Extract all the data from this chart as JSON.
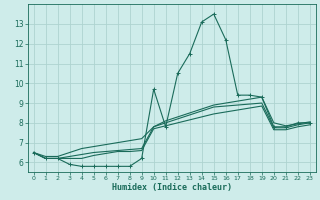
{
  "xlabel": "Humidex (Indice chaleur)",
  "x_values": [
    0,
    1,
    2,
    3,
    4,
    5,
    6,
    7,
    8,
    9,
    10,
    11,
    12,
    13,
    14,
    15,
    16,
    17,
    18,
    19,
    20,
    21,
    22,
    23
  ],
  "line_main_y": [
    6.5,
    6.2,
    6.2,
    5.9,
    5.8,
    5.8,
    5.8,
    5.8,
    5.8,
    6.2,
    9.7,
    7.8,
    10.5,
    11.5,
    13.1,
    13.5,
    12.2,
    9.4,
    9.4,
    9.3,
    7.8,
    7.8,
    8.0,
    8.0
  ],
  "line_upper_y": [
    6.5,
    6.3,
    6.3,
    6.5,
    6.7,
    6.8,
    6.9,
    7.0,
    7.1,
    7.2,
    7.8,
    8.1,
    8.3,
    8.5,
    8.7,
    8.9,
    9.0,
    9.1,
    9.2,
    9.3,
    8.0,
    7.85,
    7.95,
    8.05
  ],
  "line_mid_y": [
    6.5,
    6.2,
    6.2,
    6.3,
    6.4,
    6.5,
    6.55,
    6.6,
    6.65,
    6.7,
    7.8,
    8.0,
    8.2,
    8.4,
    8.6,
    8.8,
    8.85,
    8.9,
    8.95,
    9.0,
    7.75,
    7.75,
    7.9,
    8.0
  ],
  "line_lower_y": [
    6.5,
    6.2,
    6.2,
    6.2,
    6.2,
    6.35,
    6.45,
    6.55,
    6.55,
    6.6,
    7.7,
    7.85,
    8.0,
    8.15,
    8.3,
    8.45,
    8.55,
    8.65,
    8.75,
    8.85,
    7.65,
    7.65,
    7.8,
    7.9
  ],
  "bg_color": "#ceecea",
  "grid_color": "#aed4d0",
  "line_color": "#1a6b5a",
  "ylim": [
    5.5,
    14.0
  ],
  "xlim": [
    -0.5,
    23.5
  ],
  "yticks": [
    6,
    7,
    8,
    9,
    10,
    11,
    12,
    13
  ],
  "xticks": [
    0,
    1,
    2,
    3,
    4,
    5,
    6,
    7,
    8,
    9,
    10,
    11,
    12,
    13,
    14,
    15,
    16,
    17,
    18,
    19,
    20,
    21,
    22,
    23
  ]
}
